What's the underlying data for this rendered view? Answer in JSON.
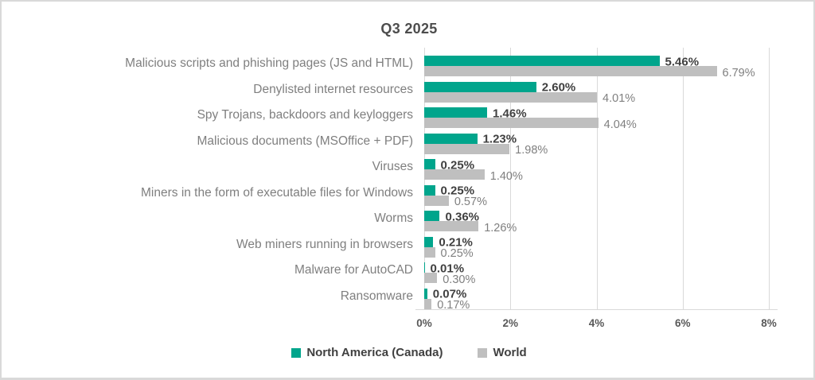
{
  "title": "Q3 2025",
  "chart_data": {
    "type": "bar",
    "orientation": "horizontal",
    "title": "Q3 2025",
    "categories": [
      "Malicious scripts and phishing pages (JS and HTML)",
      "Denylisted internet resources",
      "Spy Trojans, backdoors and keyloggers",
      "Malicious documents (MSOffice + PDF)",
      "Viruses",
      "Miners in the form of executable files for Windows",
      "Worms",
      "Web miners running in browsers",
      "Malware for AutoCAD",
      "Ransomware"
    ],
    "series": [
      {
        "name": "North America (Canada)",
        "color": "#00a58c",
        "values": [
          5.46,
          2.6,
          1.46,
          1.23,
          0.25,
          0.25,
          0.36,
          0.21,
          0.01,
          0.07
        ],
        "labels": [
          "5.46%",
          "2.60%",
          "1.46%",
          "1.23%",
          "0.25%",
          "0.25%",
          "0.36%",
          "0.21%",
          "0.01%",
          "0.07%"
        ]
      },
      {
        "name": "World",
        "color": "#bfbfbf",
        "values": [
          6.79,
          4.01,
          4.04,
          1.98,
          1.4,
          0.57,
          1.26,
          0.25,
          0.3,
          0.17
        ],
        "labels": [
          "6.79%",
          "4.01%",
          "4.04%",
          "1.98%",
          "1.40%",
          "0.57%",
          "1.26%",
          "0.25%",
          "0.30%",
          "0.17%"
        ]
      }
    ],
    "xlim": [
      0,
      8
    ],
    "x_ticks": [
      {
        "value": 0,
        "label": "0%"
      },
      {
        "value": 2,
        "label": "2%"
      },
      {
        "value": 4,
        "label": "4%"
      },
      {
        "value": 6,
        "label": "6%"
      },
      {
        "value": 8,
        "label": "8%"
      }
    ],
    "grid": true,
    "legend_position": "bottom"
  },
  "colors": {
    "accent_teal": "#00a58c",
    "bar_gray": "#bfbfbf",
    "gridline": "#d9d9d9",
    "title_text": "#4d4d4d",
    "category_text": "#7f7f7f",
    "na_value_text": "#404040",
    "world_value_text": "#7f7f7f",
    "axis_tick_text": "#595959",
    "frame_border": "#d9d9d9"
  }
}
